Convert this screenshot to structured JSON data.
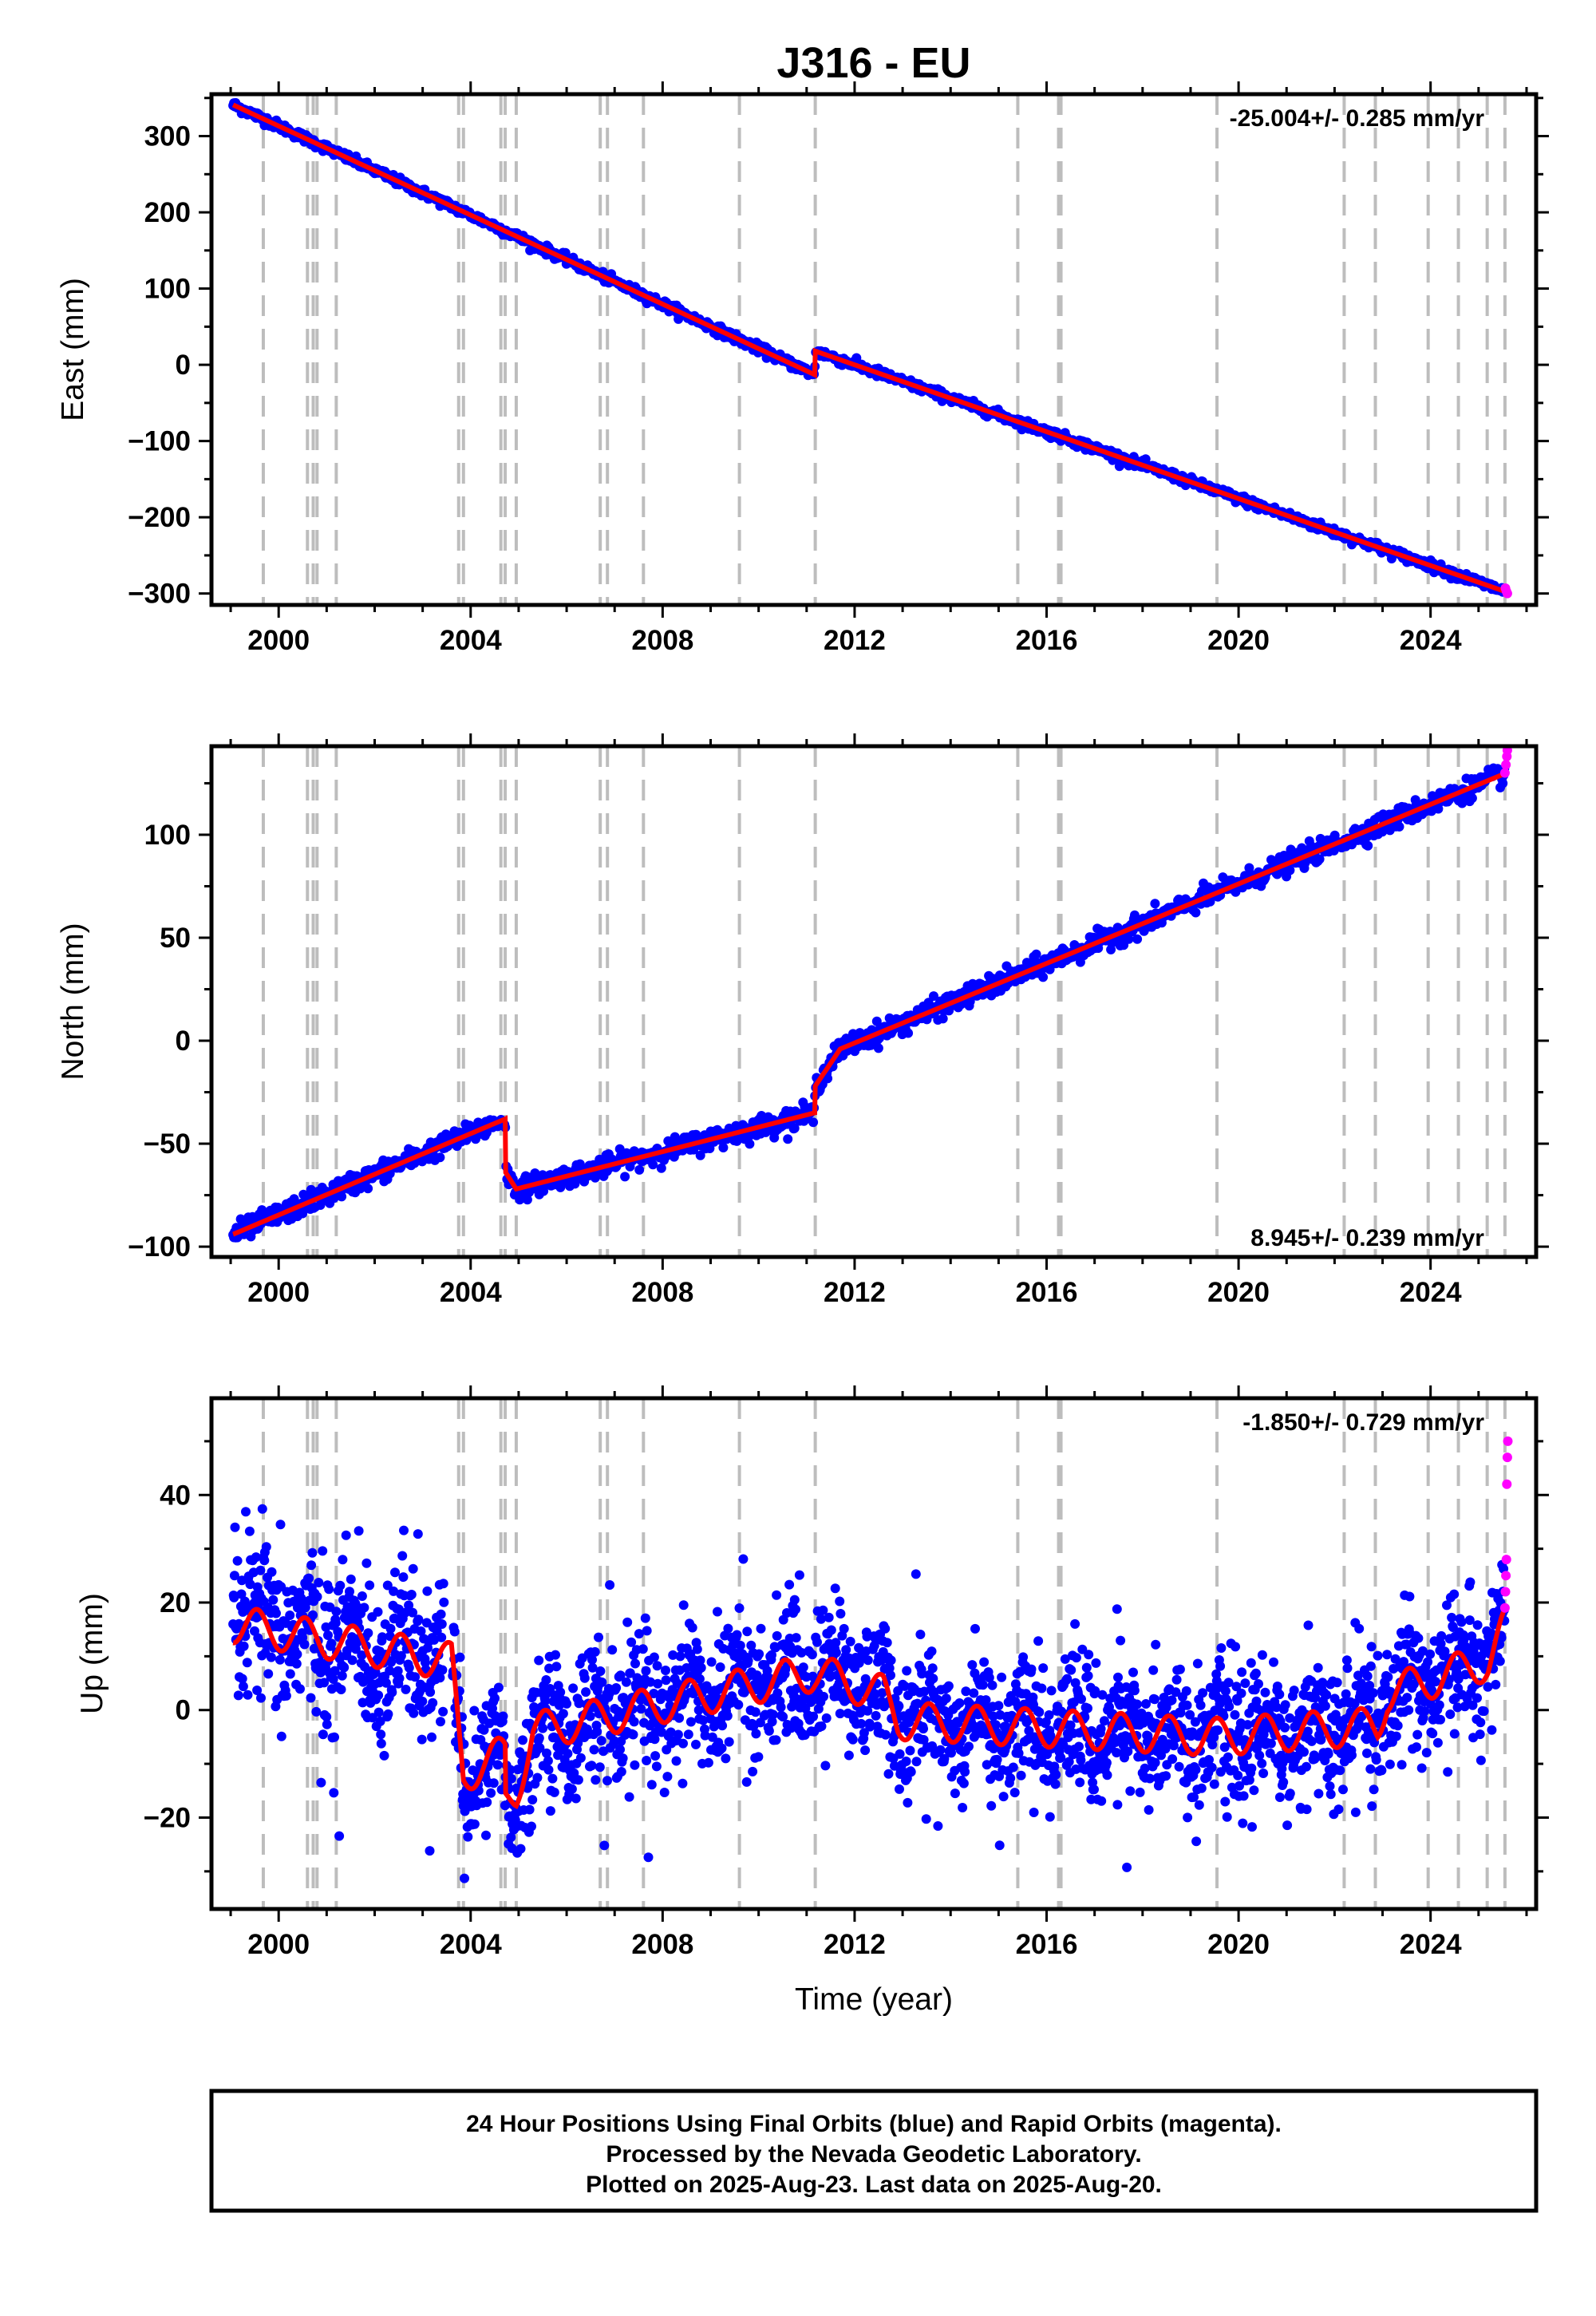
{
  "title": "J316 - EU",
  "xlabel": "Time (year)",
  "footer": {
    "line1": "24 Hour Positions Using Final Orbits (blue) and Rapid Orbits (magenta).",
    "line2": "Processed by the Nevada Geodetic Laboratory.",
    "line3": "Plotted on 2025-Aug-23. Last data on 2025-Aug-20."
  },
  "colors": {
    "final_orbits": "#0000ff",
    "rapid_orbits": "#ff00ff",
    "model": "#ff0000",
    "steps": "#bdbdbd"
  },
  "chart_data": [
    {
      "type": "scatter",
      "component": "east",
      "ylabel": "East (mm)",
      "rate_label": "-25.004+/- 0.285 mm/yr",
      "xlim": [
        1998.6,
        2026.2
      ],
      "ylim": [
        -315,
        355
      ],
      "xticks": [
        2000,
        2004,
        2008,
        2012,
        2016,
        2020,
        2024
      ],
      "yticks": [
        -300,
        -200,
        -100,
        0,
        100,
        200,
        300
      ],
      "model_knots": [
        [
          1999.05,
          341
        ],
        [
          2011.17,
          -13
        ],
        [
          2011.18,
          18
        ],
        [
          2025.58,
          -298
        ]
      ],
      "scatter_sigma_mm": 3,
      "rapid_points": [
        [
          2025.56,
          -293
        ],
        [
          2025.58,
          -297
        ],
        [
          2025.6,
          -300
        ]
      ]
    },
    {
      "type": "scatter",
      "component": "north",
      "ylabel": "North (mm)",
      "rate_label": "8.945+/- 0.239 mm/yr",
      "xlim": [
        1998.6,
        2026.2
      ],
      "ylim": [
        -105,
        143
      ],
      "xticks": [
        2000,
        2004,
        2008,
        2012,
        2016,
        2020,
        2024
      ],
      "yticks": [
        -100,
        -50,
        0,
        50,
        100
      ],
      "model_knots": [
        [
          1999.05,
          -94
        ],
        [
          2004.72,
          -38
        ],
        [
          2004.73,
          -64
        ],
        [
          2004.95,
          -72
        ],
        [
          2011.17,
          -35
        ],
        [
          2011.18,
          -22
        ],
        [
          2011.7,
          -4
        ],
        [
          2025.58,
          130
        ]
      ],
      "scatter_sigma_mm": 2.5,
      "rapid_points": [
        [
          2025.55,
          130
        ],
        [
          2025.57,
          134
        ],
        [
          2025.59,
          138
        ],
        [
          2025.6,
          141
        ]
      ]
    },
    {
      "type": "scatter",
      "component": "up",
      "ylabel": "Up (mm)",
      "rate_label": "-1.850+/- 0.729 mm/yr",
      "xlim": [
        1998.6,
        2026.2
      ],
      "ylim": [
        -37,
        58
      ],
      "xticks": [
        2000,
        2004,
        2008,
        2012,
        2016,
        2020,
        2024
      ],
      "yticks": [
        -20,
        0,
        20,
        40
      ],
      "model_knots": [
        [
          1999.05,
          16
        ],
        [
          2003.6,
          9
        ],
        [
          2003.85,
          -12
        ],
        [
          2004.72,
          -8
        ],
        [
          2004.73,
          -17
        ],
        [
          2004.95,
          -15
        ],
        [
          2005.3,
          -4
        ],
        [
          2011.17,
          7
        ],
        [
          2012.6,
          3
        ],
        [
          2012.9,
          -2
        ],
        [
          2019.5,
          -5
        ],
        [
          2022.9,
          -3
        ],
        [
          2023.1,
          3
        ],
        [
          2025.2,
          9
        ],
        [
          2025.58,
          16
        ]
      ],
      "seasonal_amplitude_mm": 3.5,
      "scatter_sigma_mm": 6,
      "rapid_points": [
        [
          2025.55,
          19
        ],
        [
          2025.56,
          22
        ],
        [
          2025.57,
          25
        ],
        [
          2025.58,
          28
        ],
        [
          2025.59,
          42
        ],
        [
          2025.6,
          47
        ],
        [
          2025.61,
          50
        ]
      ]
    }
  ],
  "step_epochs": [
    1999.68,
    2000.6,
    2000.72,
    2000.8,
    2001.2,
    2003.75,
    2003.85,
    2004.63,
    2004.72,
    2004.95,
    2006.7,
    2006.85,
    2007.6,
    2009.6,
    2011.18,
    2015.4,
    2016.25,
    2016.3,
    2019.55,
    2022.2,
    2022.85,
    2023.95,
    2024.58,
    2025.18,
    2025.55
  ]
}
